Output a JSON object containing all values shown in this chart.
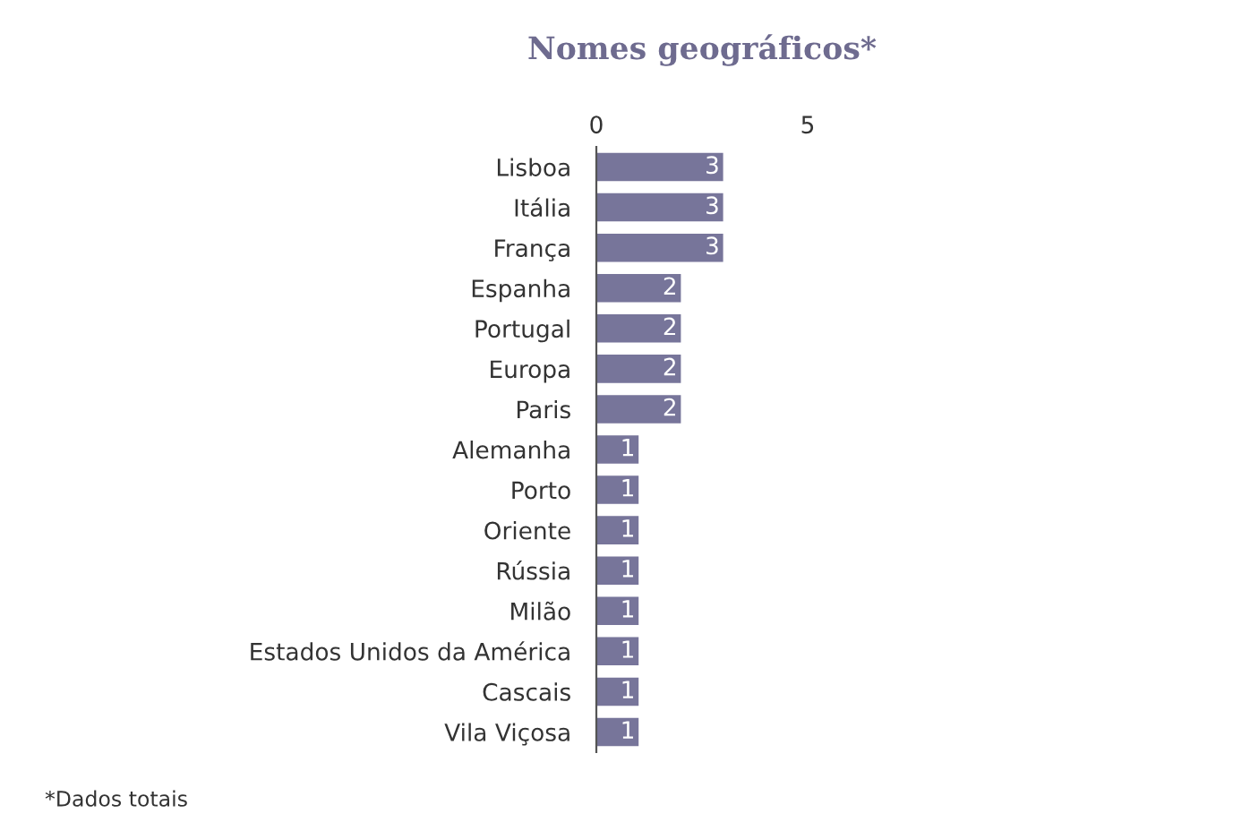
{
  "chart_data": {
    "type": "bar",
    "orientation": "horizontal",
    "title": "Nomes geográficos*",
    "categories": [
      "Lisboa",
      "Itália",
      "França",
      "Espanha",
      "Portugal",
      "Europa",
      "Paris",
      "Alemanha",
      "Porto",
      "Oriente",
      "Rússia",
      "Milão",
      "Estados Unidos da América",
      "Cascais",
      "Vila Viçosa"
    ],
    "values": [
      3,
      3,
      3,
      2,
      2,
      2,
      2,
      1,
      1,
      1,
      1,
      1,
      1,
      1,
      1
    ],
    "color": "#77759a",
    "xlim": [
      0,
      5
    ],
    "xticks": [
      0,
      5
    ],
    "grid": false,
    "data_labels": true,
    "annotations": [
      "*Dados totais"
    ]
  }
}
